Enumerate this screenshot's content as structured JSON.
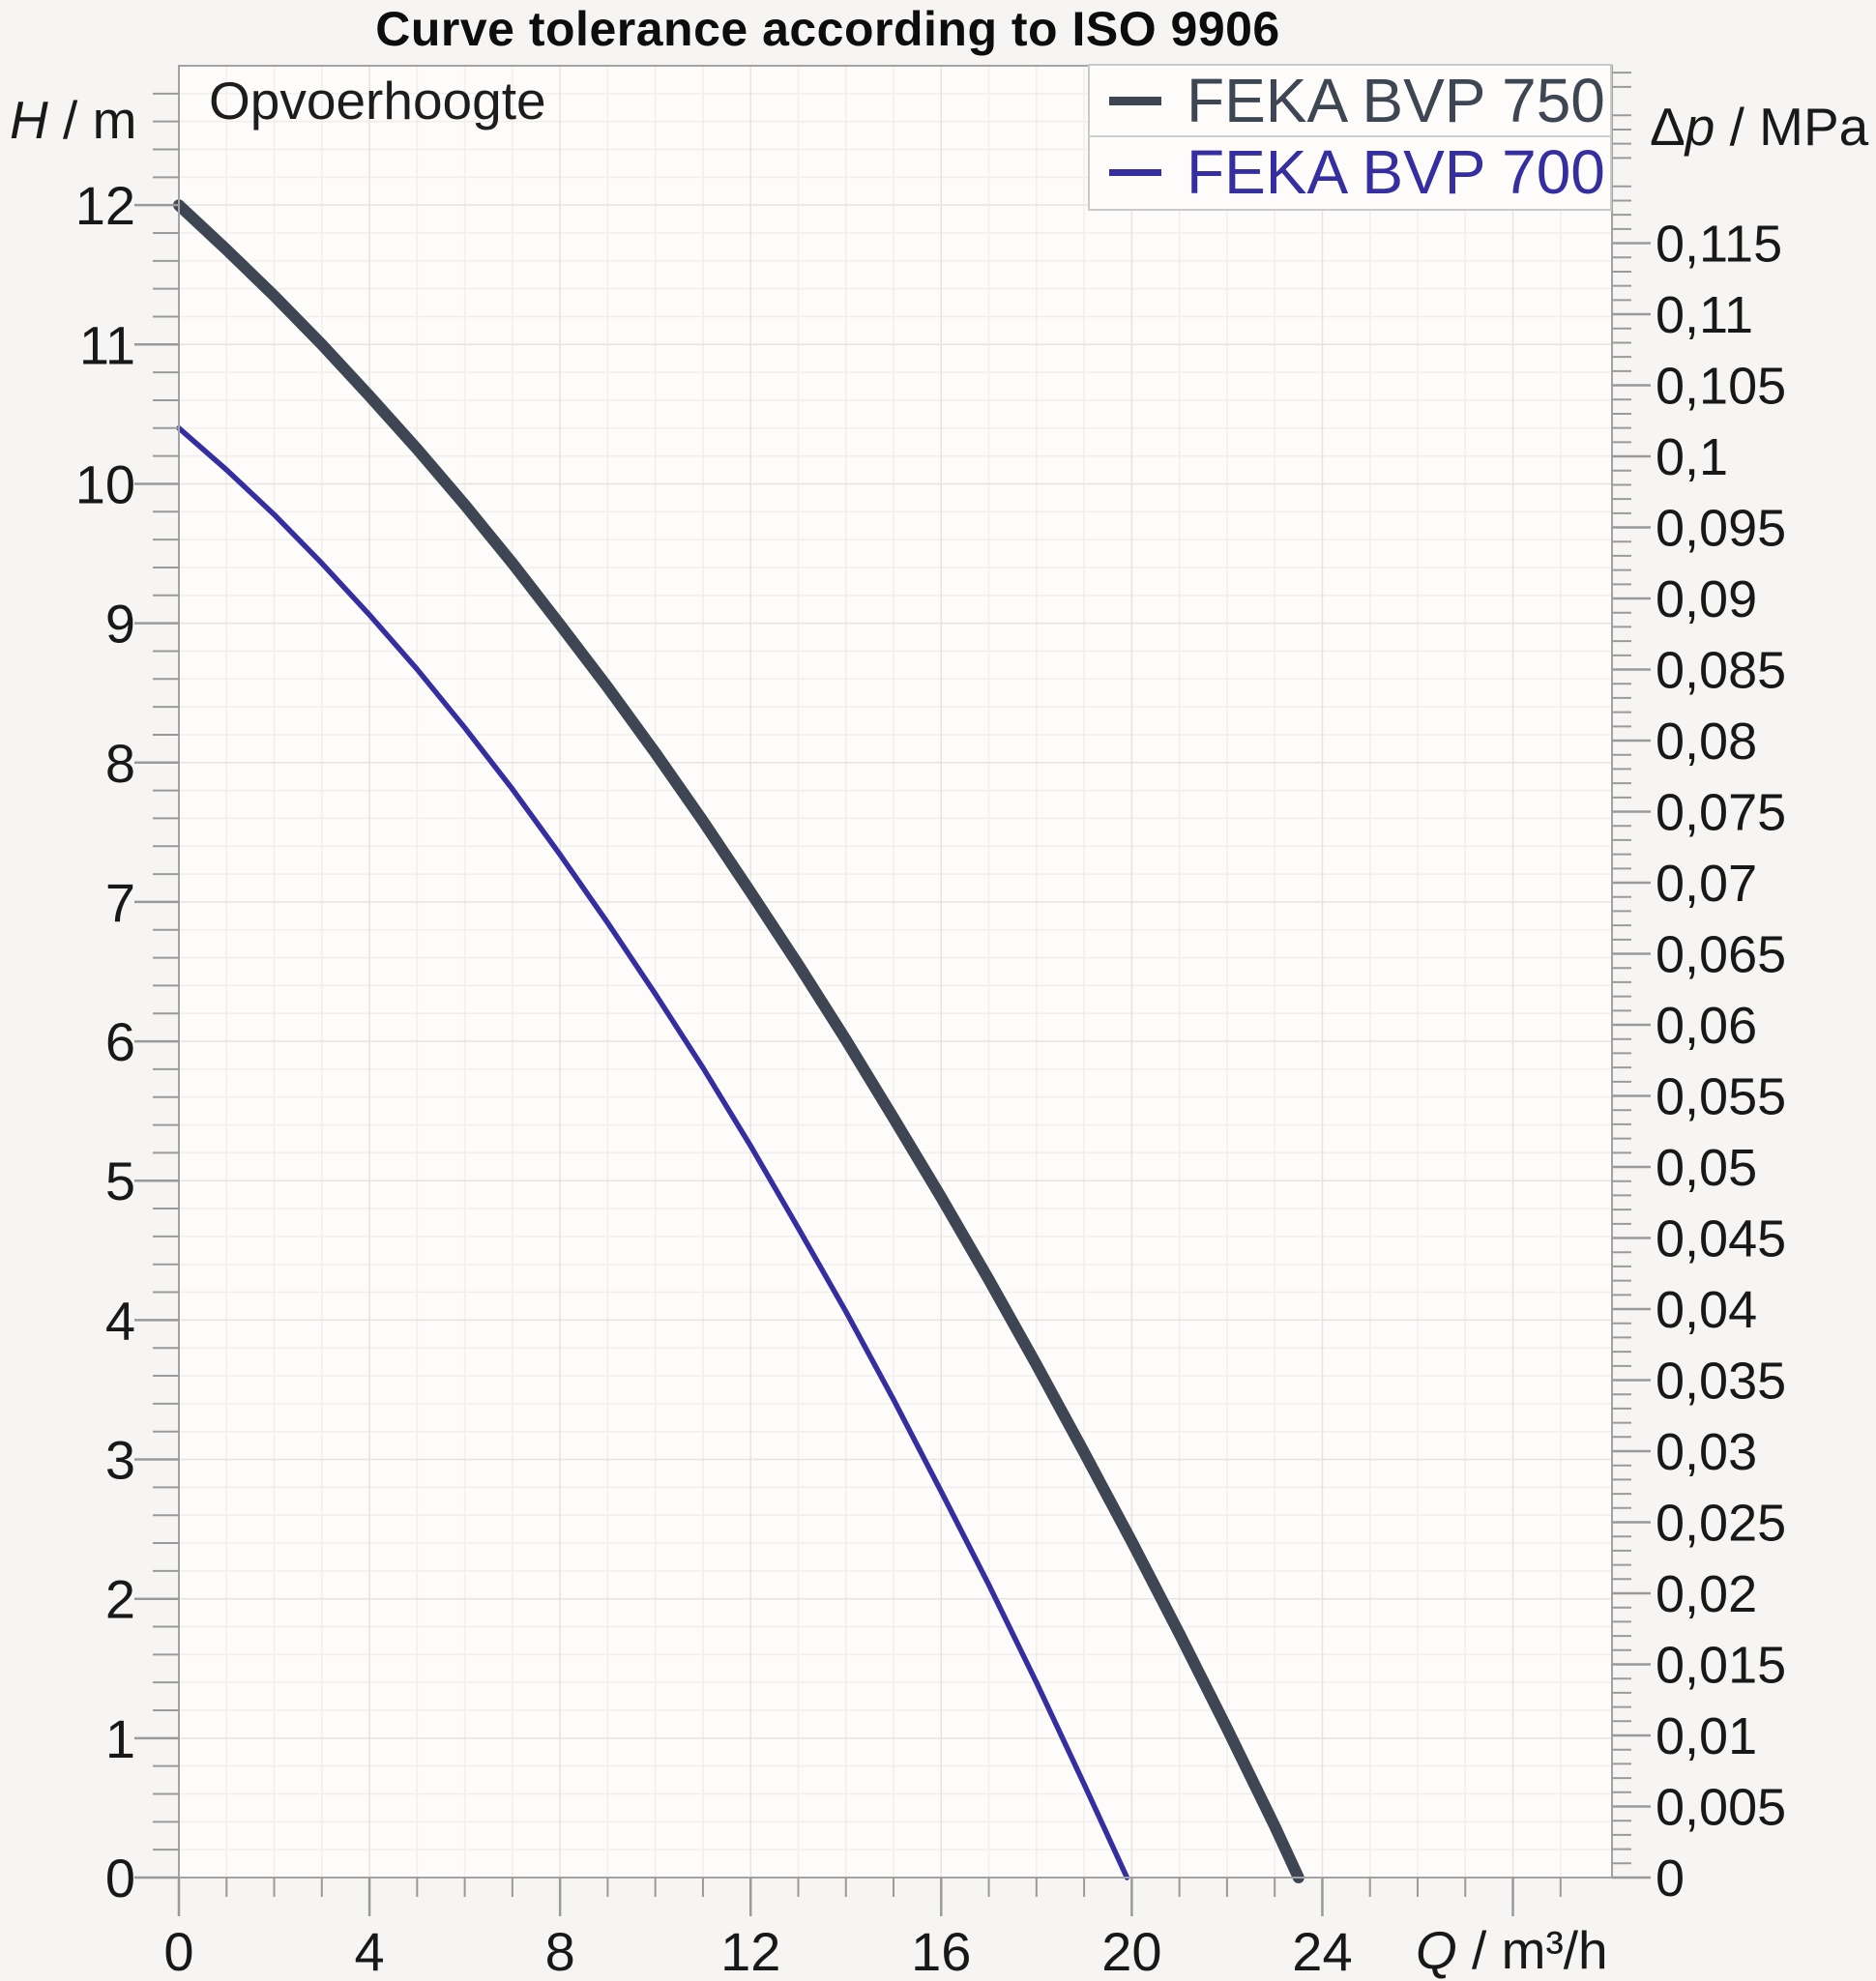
{
  "title": "Curve tolerance according to ISO 9906",
  "plot_area_label": "Opvoerhoogte",
  "axes": {
    "left": {
      "symbol": "H",
      "unit": " / m",
      "tick_labels": [
        "0",
        "1",
        "2",
        "3",
        "4",
        "5",
        "6",
        "7",
        "8",
        "9",
        "10",
        "11",
        "12"
      ]
    },
    "right": {
      "prefix": "Δ",
      "symbol": "p",
      "unit": " / MPa",
      "tick_labels": [
        "0",
        "0,005",
        "0,01",
        "0,015",
        "0,02",
        "0,025",
        "0,03",
        "0,035",
        "0,04",
        "0,045",
        "0,05",
        "0,055",
        "0,06",
        "0,065",
        "0,07",
        "0,075",
        "0,08",
        "0,085",
        "0,09",
        "0,095",
        "0,1",
        "0,105",
        "0,11",
        "0,115"
      ]
    },
    "x": {
      "symbol": "Q",
      "unit": " / m³/h",
      "tick_labels": [
        "0",
        "4",
        "8",
        "12",
        "16",
        "20",
        "24"
      ]
    }
  },
  "legend": {
    "items": [
      {
        "label": "FEKA BVP 750",
        "color": "#3d4652",
        "swatch_height": 9
      },
      {
        "label": "FEKA BVP 700",
        "color": "#342ea0",
        "swatch_height": 7
      }
    ]
  },
  "colors": {
    "page_bg": "#f6f5f3",
    "plot_bg": "#fdfcfa",
    "grid_minor": "#f1eeec",
    "grid_major": "#e7e3e0",
    "axis_line": "#a3a3a3",
    "tick": "#9a9a9a",
    "tick_text": "#181818"
  },
  "chart_data": {
    "type": "line",
    "title": "Curve tolerance according to ISO 9906",
    "xlabel": "Q / m³/h",
    "ylabel_left": "H / m",
    "ylabel_right": "Δp / MPa",
    "grid": true,
    "legend_position": "top-right",
    "x_axis": {
      "min": 0,
      "max": 30.08,
      "major_step": 4,
      "minor_step": 1,
      "labeled_ticks": [
        0,
        4,
        8,
        12,
        16,
        20,
        24
      ]
    },
    "y_left": {
      "min": 0,
      "max": 13,
      "major_step": 1,
      "minor_step": 0.2,
      "labeled_min": 0,
      "labeled_max": 12
    },
    "y_right": {
      "min": 0,
      "unit_per_m": 0.00980665,
      "major_step": 0.005,
      "minor_step": 0.001,
      "labeled_max": 0.115
    },
    "series": [
      {
        "name": "FEKA BVP 750",
        "color": "#3d4652",
        "stroke_width": 12,
        "points": [
          [
            0,
            12
          ],
          [
            1,
            11.68
          ],
          [
            2,
            11.35
          ],
          [
            3,
            11.0
          ],
          [
            4,
            10.63
          ],
          [
            5,
            10.25
          ],
          [
            6,
            9.85
          ],
          [
            7,
            9.43
          ],
          [
            8,
            8.99
          ],
          [
            9,
            8.54
          ],
          [
            10,
            8.07
          ],
          [
            11,
            7.58
          ],
          [
            12,
            7.07
          ],
          [
            13,
            6.55
          ],
          [
            14,
            6.01
          ],
          [
            15,
            5.45
          ],
          [
            16,
            4.88
          ],
          [
            17,
            4.29
          ],
          [
            18,
            3.68
          ],
          [
            19,
            3.05
          ],
          [
            20,
            2.41
          ],
          [
            21,
            1.75
          ],
          [
            22,
            1.07
          ],
          [
            23,
            0.37
          ],
          [
            23.5,
            0
          ]
        ]
      },
      {
        "name": "FEKA BVP 700",
        "color": "#342ea0",
        "stroke_width": 5.5,
        "points": [
          [
            0,
            10.4
          ],
          [
            1,
            10.1
          ],
          [
            2,
            9.78
          ],
          [
            3,
            9.43
          ],
          [
            4,
            9.06
          ],
          [
            5,
            8.67
          ],
          [
            6,
            8.25
          ],
          [
            7,
            7.81
          ],
          [
            8,
            7.34
          ],
          [
            9,
            6.85
          ],
          [
            10,
            6.34
          ],
          [
            11,
            5.81
          ],
          [
            12,
            5.25
          ],
          [
            13,
            4.66
          ],
          [
            14,
            4.06
          ],
          [
            15,
            3.43
          ],
          [
            16,
            2.77
          ],
          [
            17,
            2.1
          ],
          [
            18,
            1.4
          ],
          [
            19,
            0.67
          ],
          [
            19.9,
            0
          ]
        ]
      }
    ]
  }
}
